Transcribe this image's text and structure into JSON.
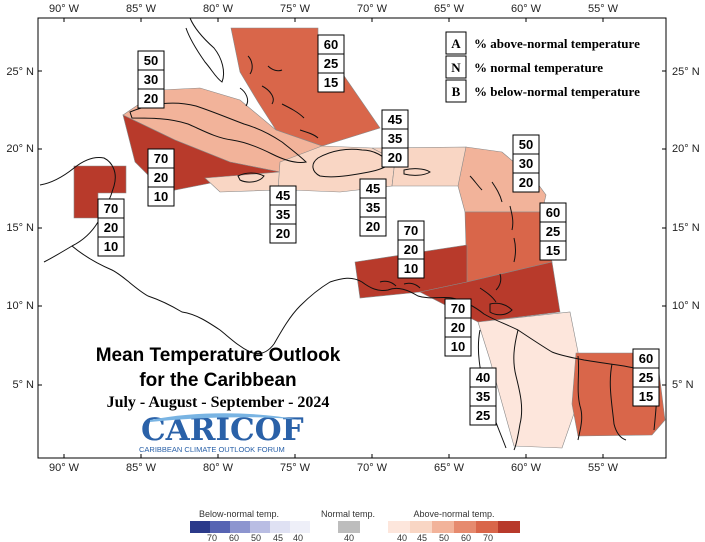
{
  "map": {
    "title_line1": "Mean Temperature Outlook",
    "title_line2": "for the Caribbean",
    "season": "July - August - September - 2024",
    "logo_text": "CARICOF",
    "logo_subtitle": "CARIBBEAN CLIMATE OUTLOOK FORUM",
    "lon_labels": [
      "90° W",
      "85° W",
      "80° W",
      "75° W",
      "70° W",
      "65° W",
      "60° W",
      "55° W"
    ],
    "lat_labels": [
      "25° N",
      "20° N",
      "15° N",
      "10° N",
      "5° N"
    ],
    "key": [
      {
        "letter": "A",
        "text": "% above-normal temperature"
      },
      {
        "letter": "N",
        "text": "% normal temperature"
      },
      {
        "letter": "B",
        "text": "% below-normal temperature"
      }
    ],
    "regions": [
      {
        "id": "bahamas",
        "A": "60",
        "N": "25",
        "B": "15",
        "color": "#d9664a"
      },
      {
        "id": "cuba",
        "A": "50",
        "N": "30",
        "B": "20",
        "color": "#f2b39a"
      },
      {
        "id": "cayman-jamaica-sea",
        "A": "70",
        "N": "20",
        "B": "10",
        "color": "#b83a2b"
      },
      {
        "id": "belize",
        "A": "70",
        "N": "20",
        "B": "10",
        "color": "#b83a2b"
      },
      {
        "id": "jamaica",
        "A": "45",
        "N": "35",
        "B": "20",
        "color": "#f9d6c4"
      },
      {
        "id": "hispaniola",
        "A": "45",
        "N": "35",
        "B": "20",
        "color": "#f9d6c4"
      },
      {
        "id": "puerto-rico",
        "A": "45",
        "N": "35",
        "B": "20",
        "color": "#f9d6c4"
      },
      {
        "id": "northern-lesser-antilles",
        "A": "50",
        "N": "30",
        "B": "20",
        "color": "#f2b39a"
      },
      {
        "id": "windward-islands",
        "A": "60",
        "N": "25",
        "B": "15",
        "color": "#d9664a"
      },
      {
        "id": "abc-islands",
        "A": "70",
        "N": "20",
        "B": "10",
        "color": "#b83a2b"
      },
      {
        "id": "trinidad-tobago",
        "A": "70",
        "N": "20",
        "B": "10",
        "color": "#b83a2b"
      },
      {
        "id": "guyana",
        "A": "40",
        "N": "35",
        "B": "25",
        "color": "#fde6dc"
      },
      {
        "id": "suriname-french-guiana",
        "A": "60",
        "N": "25",
        "B": "15",
        "color": "#d9664a"
      }
    ]
  },
  "legend": {
    "below": {
      "title": "Below-normal temp.",
      "labels": [
        "70",
        "60",
        "50",
        "45",
        "40"
      ],
      "colors": [
        "#2b3a8a",
        "#5764b3",
        "#8d95cf",
        "#b9bde3",
        "#dfe1f3",
        "#eeeff8"
      ]
    },
    "normal": {
      "title": "Normal temp.",
      "labels": [
        "40"
      ],
      "colors": [
        "#bdbdbd"
      ]
    },
    "above": {
      "title": "Above-normal temp.",
      "labels": [
        "40",
        "45",
        "50",
        "60",
        "70"
      ],
      "colors": [
        "#fde6dc",
        "#f9d6c4",
        "#f2b39a",
        "#e68a6e",
        "#d9664a",
        "#b83a2b"
      ]
    }
  }
}
